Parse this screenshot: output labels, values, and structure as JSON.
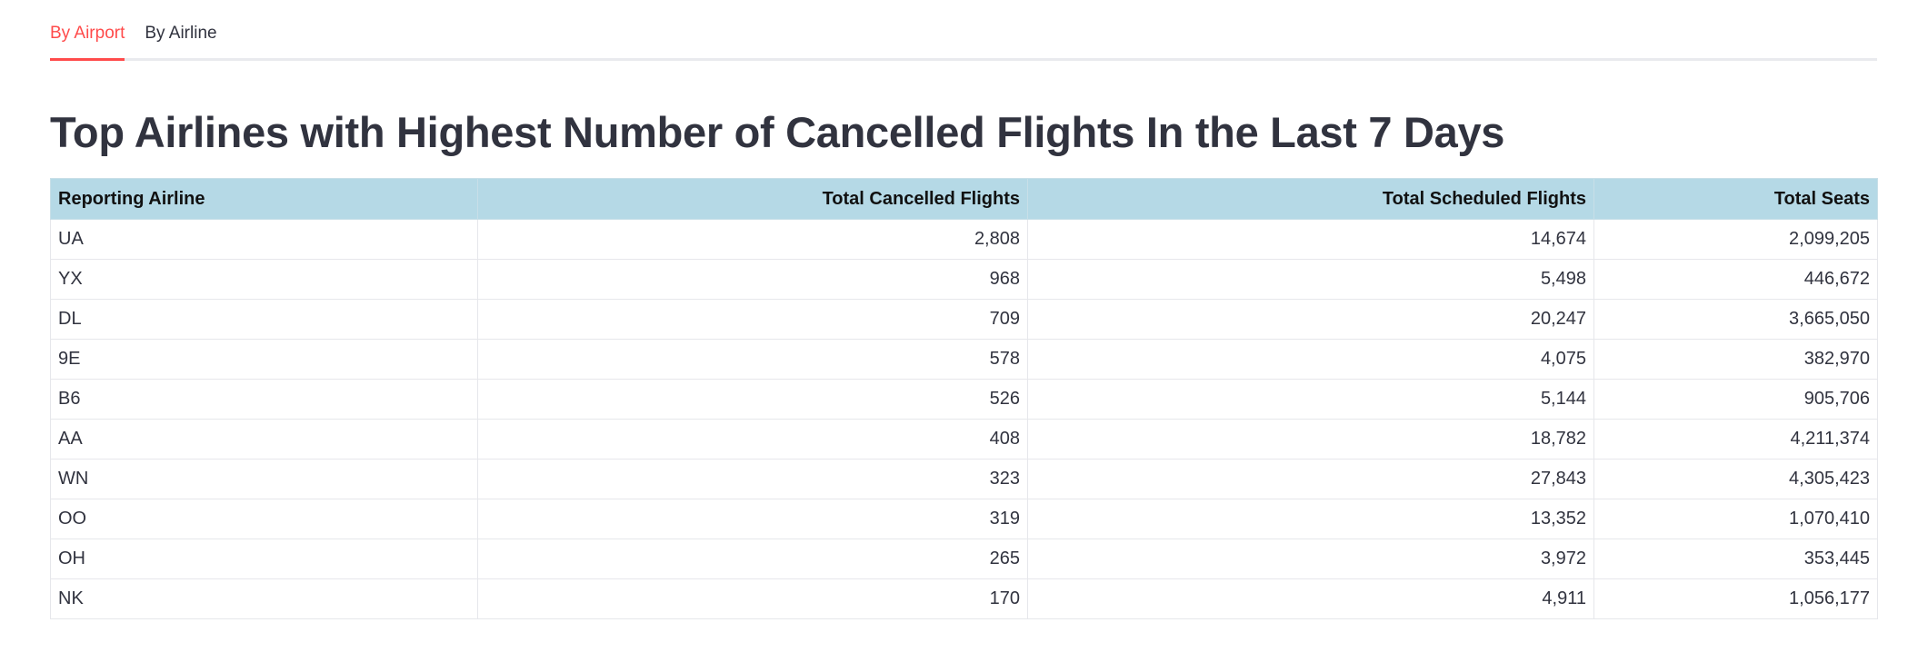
{
  "tabs": [
    {
      "label": "By Airport",
      "active": true
    },
    {
      "label": "By Airline",
      "active": false
    }
  ],
  "page": {
    "title": "Top Airlines with Highest Number of Cancelled Flights In the Last 7 Days"
  },
  "colors": {
    "accent": "#ff4b4b",
    "header_bg": "#b5d9e6",
    "text": "#31333f"
  },
  "table": {
    "headers": [
      "Reporting Airline",
      "Total Cancelled Flights",
      "Total Scheduled Flights",
      "Total Seats"
    ],
    "rows": [
      [
        "UA",
        "2,808",
        "14,674",
        "2,099,205"
      ],
      [
        "YX",
        "968",
        "5,498",
        "446,672"
      ],
      [
        "DL",
        "709",
        "20,247",
        "3,665,050"
      ],
      [
        "9E",
        "578",
        "4,075",
        "382,970"
      ],
      [
        "B6",
        "526",
        "5,144",
        "905,706"
      ],
      [
        "AA",
        "408",
        "18,782",
        "4,211,374"
      ],
      [
        "WN",
        "323",
        "27,843",
        "4,305,423"
      ],
      [
        "OO",
        "319",
        "13,352",
        "1,070,410"
      ],
      [
        "OH",
        "265",
        "3,972",
        "353,445"
      ],
      [
        "NK",
        "170",
        "4,911",
        "1,056,177"
      ]
    ]
  }
}
